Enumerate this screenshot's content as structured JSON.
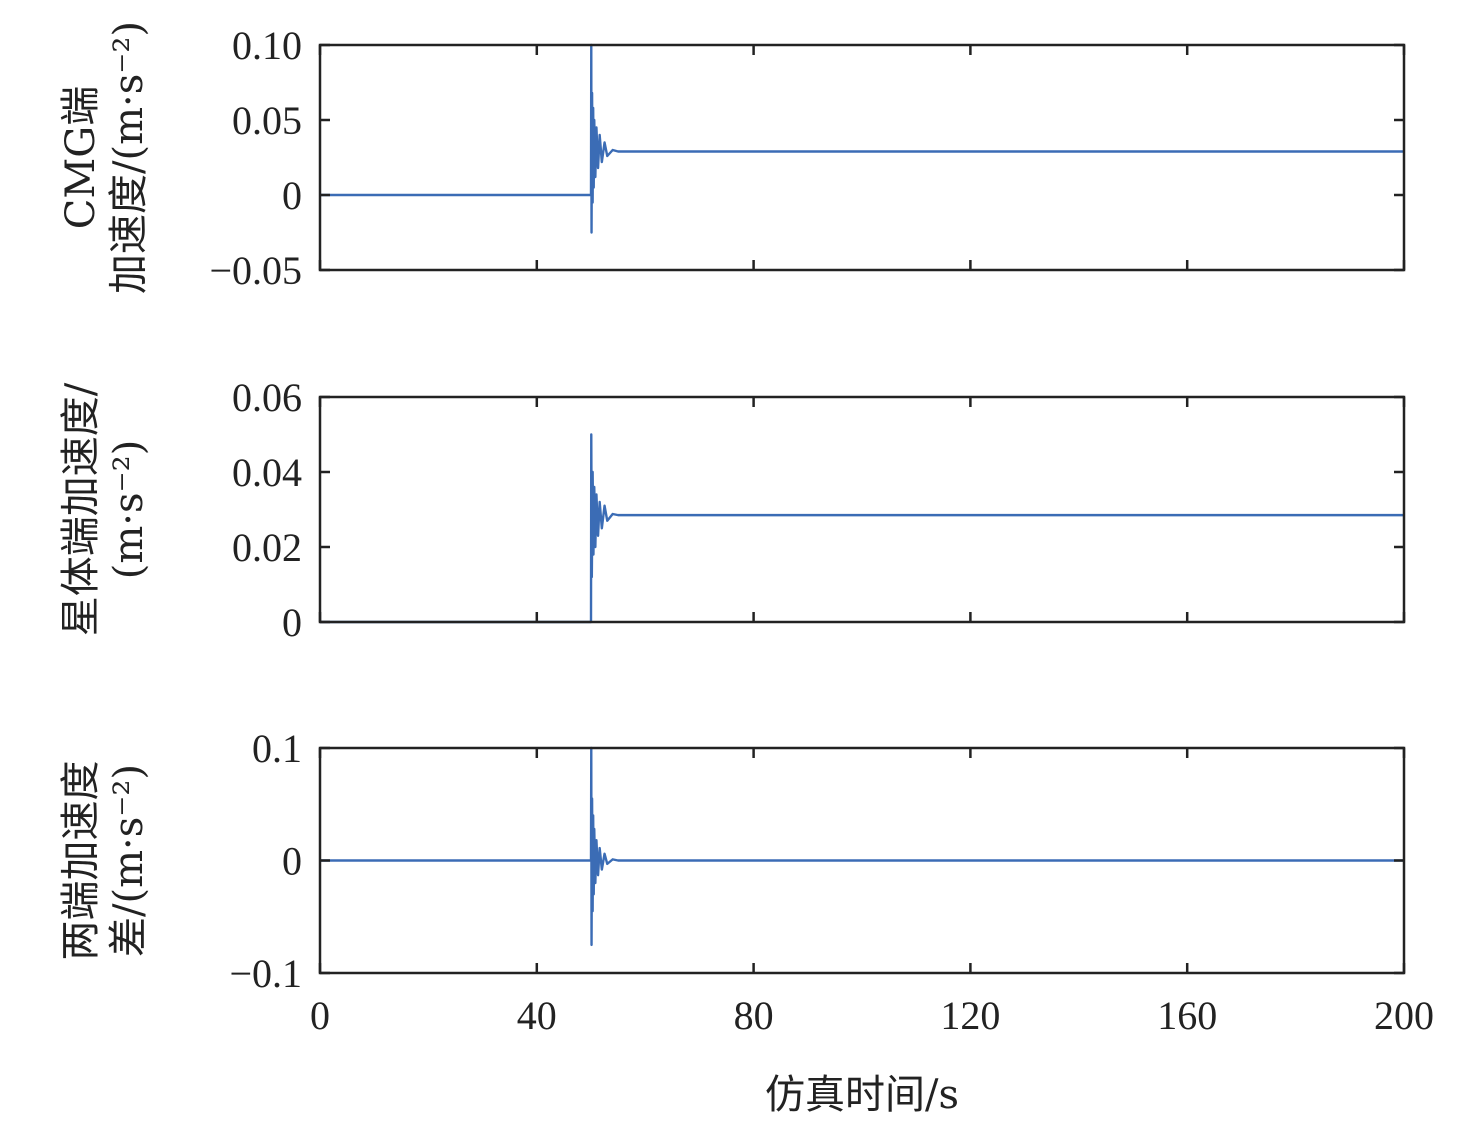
{
  "chart_data": [
    {
      "type": "line",
      "ylabel": [
        "CMG端",
        "加速度/(m·s⁻²)"
      ],
      "xlim": [
        0,
        200
      ],
      "ylim": [
        -0.05,
        0.1
      ],
      "x_ticks": [
        0,
        40,
        80,
        120,
        160,
        200
      ],
      "y_ticks": [
        -0.05,
        0,
        0.05,
        0.1
      ],
      "y_tick_labels": [
        "−0.05",
        "0",
        "0.05",
        "0.10"
      ],
      "show_x_tick_labels": false,
      "grid": false,
      "series": [
        {
          "color": "#3b6cb5",
          "x": [
            0,
            50,
            50.05,
            50.1,
            50.2,
            50.3,
            50.4,
            50.5,
            50.6,
            50.8,
            51.0,
            51.3,
            51.6,
            52.0,
            52.5,
            53.0,
            54.0,
            55.0,
            200
          ],
          "y": [
            0,
            0,
            0.1,
            -0.025,
            0.068,
            -0.005,
            0.058,
            0.005,
            0.05,
            0.012,
            0.045,
            0.018,
            0.04,
            0.022,
            0.035,
            0.026,
            0.03,
            0.029,
            0.029
          ]
        }
      ]
    },
    {
      "type": "line",
      "ylabel": [
        "星体端加速度/",
        "(m·s⁻²)"
      ],
      "xlim": [
        0,
        200
      ],
      "ylim": [
        0,
        0.06
      ],
      "x_ticks": [
        0,
        40,
        80,
        120,
        160,
        200
      ],
      "y_ticks": [
        0,
        0.02,
        0.04,
        0.06
      ],
      "y_tick_labels": [
        "0",
        "0.02",
        "0.04",
        "0.06"
      ],
      "show_x_tick_labels": false,
      "grid": false,
      "series": [
        {
          "color": "#3b6cb5",
          "x": [
            0,
            50,
            50.05,
            50.15,
            50.3,
            50.45,
            50.6,
            50.8,
            51.0,
            51.3,
            51.6,
            52.0,
            52.5,
            53.0,
            54.0,
            55.0,
            200
          ],
          "y": [
            0,
            0,
            0.05,
            0.012,
            0.04,
            0.018,
            0.036,
            0.02,
            0.034,
            0.023,
            0.032,
            0.025,
            0.031,
            0.027,
            0.0288,
            0.0285,
            0.0285
          ]
        }
      ]
    },
    {
      "type": "line",
      "ylabel": [
        "两端加速度",
        "差/(m·s⁻²)"
      ],
      "xlabel": "仿真时间/s",
      "xlim": [
        0,
        200
      ],
      "ylim": [
        -0.1,
        0.1
      ],
      "x_ticks": [
        0,
        40,
        80,
        120,
        160,
        200
      ],
      "x_tick_labels": [
        "0",
        "40",
        "80",
        "120",
        "160",
        "200"
      ],
      "y_ticks": [
        -0.1,
        0,
        0.1
      ],
      "y_tick_labels": [
        "−0.1",
        "0",
        "0.1"
      ],
      "show_x_tick_labels": true,
      "grid": false,
      "series": [
        {
          "color": "#3b6cb5",
          "x": [
            0,
            50,
            50.05,
            50.1,
            50.2,
            50.3,
            50.4,
            50.5,
            50.6,
            50.8,
            51.0,
            51.3,
            51.6,
            52.0,
            52.5,
            53.0,
            54.0,
            55.0,
            200
          ],
          "y": [
            0,
            0,
            0.1,
            -0.075,
            0.055,
            -0.045,
            0.04,
            -0.03,
            0.028,
            -0.02,
            0.018,
            -0.013,
            0.011,
            -0.008,
            0.006,
            -0.003,
            0.001,
            0,
            0
          ]
        }
      ]
    }
  ]
}
